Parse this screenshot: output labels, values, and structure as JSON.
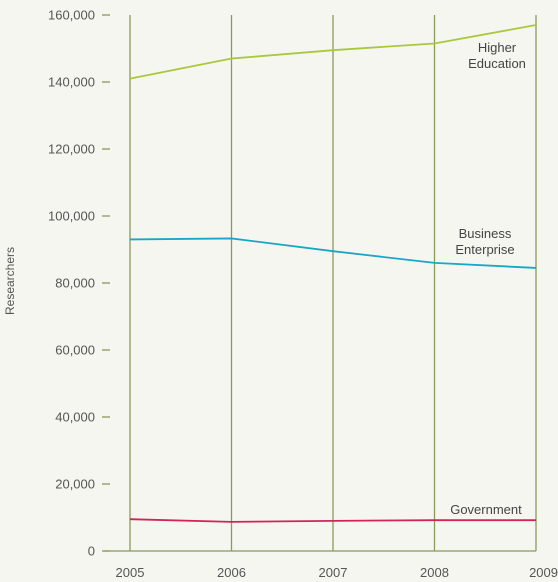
{
  "chart_data": {
    "type": "line",
    "title": "",
    "xlabel": "",
    "ylabel": "Researchers",
    "x": [
      "2005",
      "2006",
      "2007",
      "2008",
      "2009"
    ],
    "ylim": [
      0,
      160000
    ],
    "yticks": [
      "0",
      "20,000",
      "40,000",
      "60,000",
      "80,000",
      "100,000",
      "120,000",
      "140,000",
      "160,000"
    ],
    "grid": "vertical",
    "series": [
      {
        "name": "Higher Education",
        "label_lines": [
          "Higher",
          "Education"
        ],
        "values": [
          141000,
          147000,
          149500,
          151500,
          157000
        ],
        "color": "#a9c93c"
      },
      {
        "name": "Business Enterprise",
        "label_lines": [
          "Business",
          "Enterprise"
        ],
        "values": [
          93000,
          93300,
          89500,
          86000,
          84500
        ],
        "color": "#1aa6c8"
      },
      {
        "name": "Government",
        "label_lines": [
          "Government"
        ],
        "values": [
          9500,
          8700,
          9000,
          9200,
          9200
        ],
        "color": "#d0245a"
      }
    ]
  },
  "colors": {
    "background": "#f6f6f0",
    "grid": "#8a9a5b",
    "axis": "#8a9a5b",
    "text": "#555555"
  }
}
